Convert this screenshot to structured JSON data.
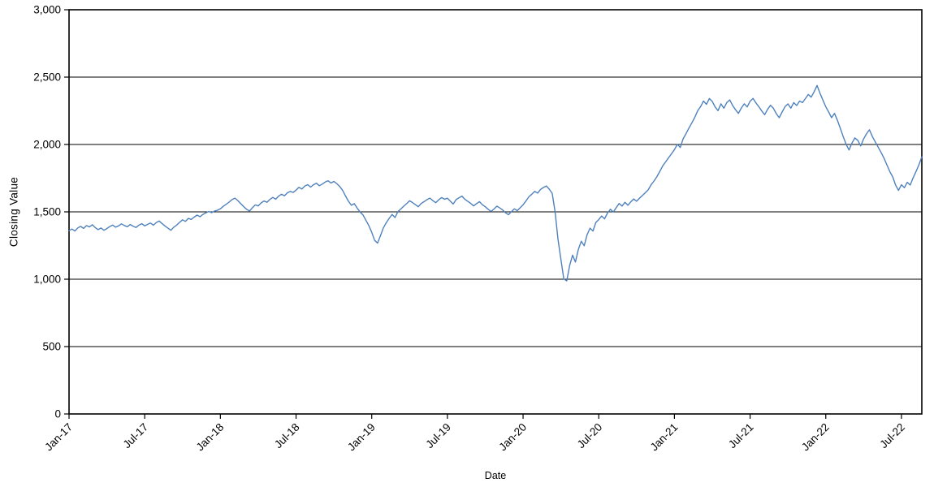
{
  "chart_data": {
    "type": "line",
    "title": "",
    "xlabel": "Date",
    "ylabel": "Closing Value",
    "ylim": [
      0,
      3000
    ],
    "grid": "horizontal",
    "legend": "none",
    "background": "#ffffff",
    "frame_color": "#000000",
    "gridline_color": "#000000",
    "y_ticks": [
      {
        "value": 0,
        "label": "0"
      },
      {
        "value": 500,
        "label": "500"
      },
      {
        "value": 1000,
        "label": "1,000"
      },
      {
        "value": 1500,
        "label": "1,500"
      },
      {
        "value": 2000,
        "label": "2,000"
      },
      {
        "value": 2500,
        "label": "2,500"
      },
      {
        "value": 3000,
        "label": "3,000"
      }
    ],
    "x_ticks": [
      {
        "index": 0,
        "label": "Jan-17"
      },
      {
        "index": 26,
        "label": "Jul-17"
      },
      {
        "index": 52,
        "label": "Jan-18"
      },
      {
        "index": 78,
        "label": "Jul-18"
      },
      {
        "index": 104,
        "label": "Jan-19"
      },
      {
        "index": 130,
        "label": "Jul-19"
      },
      {
        "index": 156,
        "label": "Jan-20"
      },
      {
        "index": 182,
        "label": "Jul-20"
      },
      {
        "index": 208,
        "label": "Jan-21"
      },
      {
        "index": 234,
        "label": "Jul-21"
      },
      {
        "index": 260,
        "label": "Jan-22"
      },
      {
        "index": 286,
        "label": "Jul-22"
      }
    ],
    "series": [
      {
        "name": "Closing Value",
        "color": "#4f81bd",
        "frequency": "weekly",
        "start": "Jan-17",
        "end": "Aug-22",
        "values": [
          1360,
          1372,
          1358,
          1381,
          1393,
          1377,
          1398,
          1388,
          1404,
          1383,
          1368,
          1380,
          1363,
          1376,
          1391,
          1402,
          1386,
          1396,
          1411,
          1399,
          1389,
          1406,
          1394,
          1384,
          1401,
          1412,
          1396,
          1407,
          1417,
          1401,
          1421,
          1432,
          1412,
          1394,
          1379,
          1363,
          1386,
          1402,
          1422,
          1441,
          1429,
          1451,
          1444,
          1461,
          1476,
          1464,
          1481,
          1492,
          1503,
          1494,
          1506,
          1512,
          1522,
          1541,
          1556,
          1572,
          1591,
          1602,
          1584,
          1561,
          1539,
          1519,
          1506,
          1531,
          1552,
          1544,
          1566,
          1581,
          1571,
          1592,
          1607,
          1594,
          1616,
          1631,
          1619,
          1641,
          1652,
          1644,
          1661,
          1682,
          1669,
          1691,
          1702,
          1684,
          1701,
          1712,
          1694,
          1706,
          1721,
          1731,
          1714,
          1726,
          1709,
          1688,
          1659,
          1618,
          1579,
          1549,
          1561,
          1528,
          1499,
          1478,
          1438,
          1398,
          1348,
          1288,
          1268,
          1322,
          1381,
          1419,
          1452,
          1481,
          1458,
          1502,
          1521,
          1542,
          1561,
          1582,
          1569,
          1553,
          1538,
          1562,
          1576,
          1591,
          1602,
          1583,
          1568,
          1589,
          1606,
          1594,
          1601,
          1579,
          1558,
          1591,
          1604,
          1617,
          1593,
          1578,
          1563,
          1544,
          1561,
          1576,
          1553,
          1538,
          1519,
          1503,
          1521,
          1542,
          1529,
          1513,
          1493,
          1479,
          1501,
          1522,
          1509,
          1531,
          1552,
          1581,
          1612,
          1631,
          1652,
          1639,
          1666,
          1681,
          1692,
          1668,
          1638,
          1498,
          1298,
          1148,
          1002,
          988,
          1102,
          1179,
          1128,
          1221,
          1282,
          1248,
          1331,
          1379,
          1358,
          1421,
          1442,
          1469,
          1448,
          1491,
          1519,
          1498,
          1531,
          1562,
          1543,
          1571,
          1549,
          1574,
          1596,
          1579,
          1601,
          1621,
          1642,
          1663,
          1701,
          1729,
          1762,
          1801,
          1842,
          1871,
          1902,
          1931,
          1962,
          2001,
          1978,
          2042,
          2081,
          2122,
          2161,
          2202,
          2251,
          2281,
          2322,
          2298,
          2341,
          2319,
          2278,
          2251,
          2302,
          2269,
          2311,
          2331,
          2289,
          2258,
          2231,
          2271,
          2302,
          2279,
          2321,
          2342,
          2309,
          2281,
          2249,
          2221,
          2261,
          2291,
          2269,
          2229,
          2199,
          2241,
          2281,
          2301,
          2269,
          2311,
          2289,
          2322,
          2311,
          2341,
          2371,
          2351,
          2391,
          2438,
          2381,
          2329,
          2281,
          2241,
          2199,
          2231,
          2179,
          2119,
          2059,
          2001,
          1959,
          2011,
          2049,
          2031,
          1989,
          2041,
          2079,
          2109,
          2059,
          2019,
          1981,
          1941,
          1899,
          1849,
          1799,
          1759,
          1699,
          1659,
          1701,
          1679,
          1719,
          1699,
          1751,
          1799,
          1849,
          1908
        ]
      }
    ]
  }
}
